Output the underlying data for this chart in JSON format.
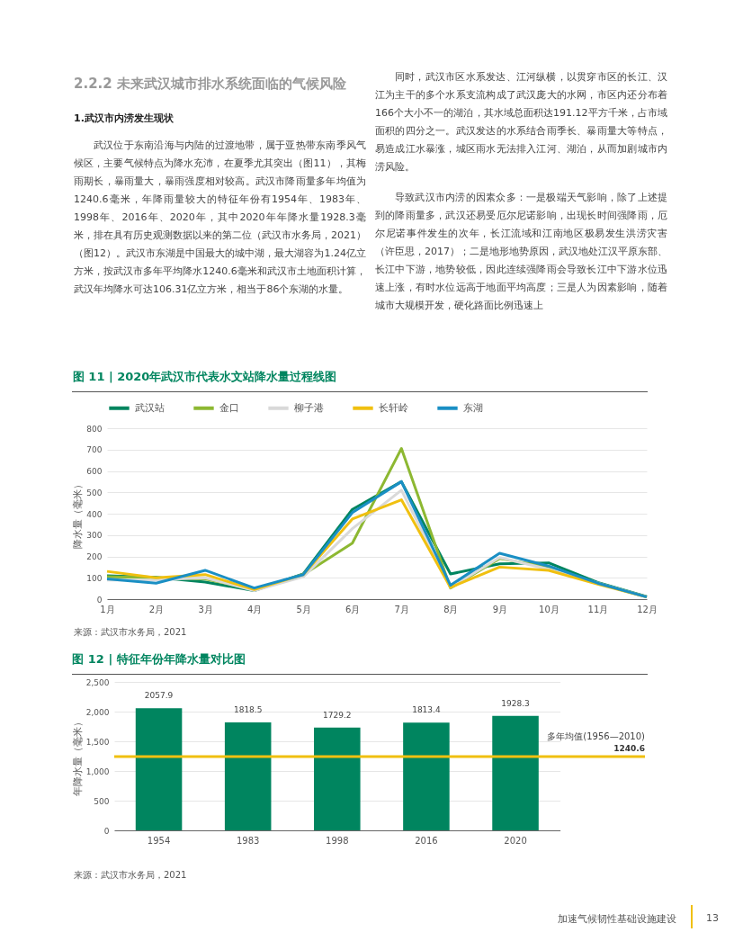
{
  "chart_data": [
    {
      "type": "line",
      "title": "图 11 | 2020年武汉市代表水文站降水量过程线图",
      "ylabel": "降水量（毫米）",
      "categories": [
        "1月",
        "2月",
        "3月",
        "4月",
        "5月",
        "6月",
        "7月",
        "8月",
        "9月",
        "10月",
        "11月",
        "12月"
      ],
      "series": [
        {
          "name": "武汉站",
          "color": "#00855f",
          "values": [
            110,
            102,
            80,
            40,
            118,
            420,
            550,
            118,
            165,
            170,
            78,
            12
          ]
        },
        {
          "name": "金口",
          "color": "#8db832",
          "values": [
            105,
            100,
            95,
            45,
            115,
            262,
            705,
            52,
            190,
            150,
            75,
            10
          ]
        },
        {
          "name": "柳子港",
          "color": "#d9d9d9",
          "values": [
            90,
            90,
            100,
            40,
            105,
            330,
            510,
            55,
            195,
            140,
            75,
            10
          ]
        },
        {
          "name": "长轩岭",
          "color": "#f0c010",
          "values": [
            130,
            100,
            115,
            45,
            115,
            375,
            465,
            55,
            150,
            135,
            70,
            10
          ]
        },
        {
          "name": "东湖",
          "color": "#1a8fc4",
          "values": [
            95,
            75,
            135,
            52,
            115,
            405,
            550,
            65,
            215,
            155,
            75,
            10
          ]
        }
      ],
      "ylim": [
        0,
        800
      ],
      "yticks": [
        0,
        100,
        200,
        300,
        400,
        500,
        600,
        700,
        800
      ],
      "grid": "y",
      "legend": "top",
      "annotations": [
        "来源：武汉市水务局，2021",
        "2.2.2 未来武汉城市排水系统面临的气候风险",
        "1.武汉市内涝发生现状",
        "武汉位于东南沿海与内陆的过渡地带，属于亚热带东南季风气候区，主要气候特点为降水充沛，在夏季尤其突出（图11），其梅雨期长，暴雨量大，暴雨强度相对较高。武汉市降雨量多年均值为1240.6毫米，年降雨量较大的特征年份有1954年、1983年、1998年、2016年、2020年，其中2020年年降水量1928.3毫米，排在具有历史观测数据以来的第二位（武汉市水务局，2021）（图12）。武汉市东湖是中国最大的城中湖，最大湖容为1.24亿立方米，按武汉市多年平均降水1240.6毫米和武汉市土地面积计算，武汉年均降水可达106.31亿立方米，相当于86个东湖的水量。",
        "同时，武汉市区水系发达、江河纵横，以贯穿市区的长江、汉江为主干的多个水系支流构成了武汉庞大的水网，市区内还分布着166个大小不一的湖泊，其水域总面积达191.12平方千米，占市域面积的四分之一。武汉发达的水系结合雨季长、暴雨量大等特点，易造成江水暴涨，城区雨水无法排入江河、湖泊，从而加剧城市内涝风险。",
        "导致武汉市内涝的因素众多：一是极端天气影响，除了上述提到的降雨量多，武汉还易受厄尔尼诺影响，出现长时间强降雨，厄尔尼诺事件发生的次年，长江流域和江南地区极易发生洪涝灾害（许臣思，2017）；二是地形地势原因，武汉地处江汉平原东部、长江中下游，地势较低，因此连续强降雨会导致长江中下游水位迅速上涨，有时水位远高于地面平均高度；三是人为因素影响，随着城市大规模开发，硬化路面比例迅速上"
      ]
    },
    {
      "type": "bar",
      "title": "图 12 | 特征年份年降水量对比图",
      "ylabel": "年降水量（毫米）",
      "categories": [
        "1954",
        "1983",
        "1998",
        "2016",
        "2020"
      ],
      "values": [
        2057.9,
        1818.5,
        1729.2,
        1813.4,
        1928.3
      ],
      "color": "#00855f",
      "data_labels": true,
      "ylim": [
        0,
        2500
      ],
      "yticks": [
        0,
        500,
        {
          "value": 1000,
          "label": "1,000"
        },
        {
          "value": 1500,
          "label": "1,500"
        },
        {
          "value": 2000,
          "label": "2,000"
        },
        {
          "value": 2500,
          "label": "2,500"
        }
      ],
      "grid": "y",
      "ref_lines": [
        {
          "axis": "y",
          "value": 1240.6,
          "label": "多年均值(1956—2010)",
          "color": "#f0c010"
        }
      ],
      "annotations": [
        "来源：武汉市水务局，2021",
        "加速气候韧性基础设施建设",
        "13",
        {
          "text": "1240.6",
          "y": 1240.6
        }
      ]
    }
  ]
}
